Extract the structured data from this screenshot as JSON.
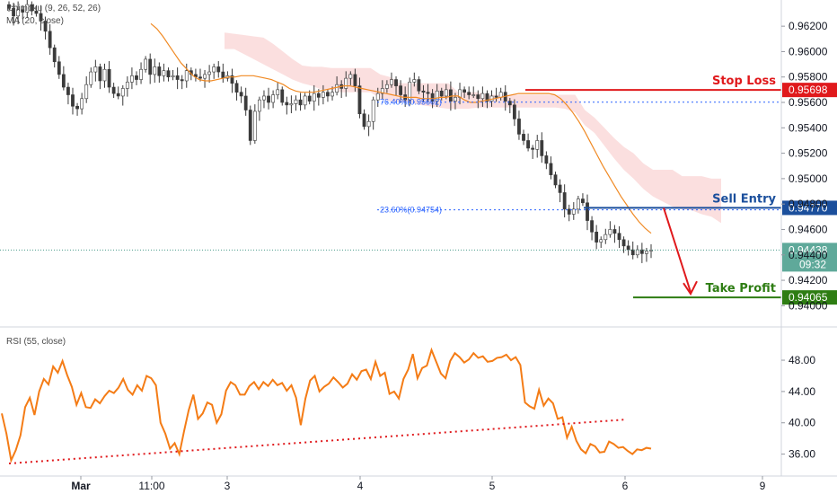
{
  "chart_data": [
    {
      "type": "candlestick",
      "legend": [
        "Ichimoku (9, 26, 52, 26)",
        "MA (20, close)"
      ],
      "y_ticks": [
        "0.96200",
        "0.96000",
        "0.95800",
        "0.95600",
        "0.95400",
        "0.95200",
        "0.95000",
        "0.94800",
        "0.94600",
        "0.94400",
        "0.94200",
        "0.94000"
      ],
      "ylim": [
        0.9396,
        0.963
      ],
      "x_ticks": [
        "Mar",
        "11:00",
        "3",
        "4",
        "5",
        "6",
        "9"
      ],
      "closes": [
        0.9634,
        0.9628,
        0.9633,
        0.9631,
        0.9637,
        0.9632,
        0.963,
        0.9624,
        0.9616,
        0.9603,
        0.9592,
        0.9582,
        0.9572,
        0.9566,
        0.9557,
        0.9555,
        0.9563,
        0.9574,
        0.9584,
        0.9588,
        0.9577,
        0.9586,
        0.9572,
        0.9567,
        0.9565,
        0.9571,
        0.9576,
        0.9581,
        0.9578,
        0.9586,
        0.9594,
        0.9582,
        0.9588,
        0.9581,
        0.9585,
        0.958,
        0.9581,
        0.9578,
        0.9577,
        0.9585,
        0.9582,
        0.958,
        0.9579,
        0.9582,
        0.9584,
        0.9588,
        0.9584,
        0.9579,
        0.9581,
        0.9575,
        0.9568,
        0.9565,
        0.9554,
        0.953,
        0.9553,
        0.9562,
        0.9565,
        0.956,
        0.9566,
        0.957,
        0.956,
        0.9558,
        0.9559,
        0.9562,
        0.9558,
        0.9565,
        0.9561,
        0.9567,
        0.9564,
        0.9568,
        0.9565,
        0.9568,
        0.9574,
        0.9571,
        0.9579,
        0.9582,
        0.9573,
        0.9551,
        0.9541,
        0.9545,
        0.9562,
        0.9567,
        0.9571,
        0.9574,
        0.9578,
        0.9573,
        0.9566,
        0.9562,
        0.9576,
        0.9578,
        0.9569,
        0.9568,
        0.9567,
        0.9561,
        0.9569,
        0.9565,
        0.957,
        0.9561,
        0.9564,
        0.957,
        0.9568,
        0.9566,
        0.9566,
        0.9563,
        0.9567,
        0.9561,
        0.9565,
        0.9564,
        0.9568,
        0.9561,
        0.9558,
        0.9547,
        0.9535,
        0.953,
        0.9524,
        0.9523,
        0.953,
        0.9518,
        0.9512,
        0.9503,
        0.9495,
        0.9489,
        0.9476,
        0.9472,
        0.9476,
        0.9484,
        0.9481,
        0.9467,
        0.9458,
        0.945,
        0.9452,
        0.9456,
        0.946,
        0.9457,
        0.9452,
        0.9447,
        0.9444,
        0.944,
        0.9444,
        0.9441,
        0.9443,
        0.94438
      ],
      "ma_20_close": [
        0.9622,
        0.9618,
        0.9612,
        0.9605,
        0.9598,
        0.9591,
        0.9586,
        0.9581,
        0.9578,
        0.9577,
        0.9577,
        0.9578,
        0.9579,
        0.958,
        0.958,
        0.9581,
        0.9581,
        0.9581,
        0.958,
        0.9579,
        0.9578,
        0.9576,
        0.9574,
        0.9571,
        0.9569,
        0.9568,
        0.9568,
        0.9568,
        0.9569,
        0.957,
        0.9571,
        0.9572,
        0.9573,
        0.9573,
        0.9572,
        0.9571,
        0.957,
        0.9569,
        0.9568,
        0.9567,
        0.9566,
        0.9565,
        0.9564,
        0.9564,
        0.9564,
        0.9563,
        0.9563,
        0.9563,
        0.9564,
        0.9564,
        0.9565,
        0.9565,
        0.9562,
        0.956,
        0.956,
        0.9561,
        0.9562,
        0.9563,
        0.9564,
        0.9565,
        0.9566,
        0.9567,
        0.9567,
        0.9567,
        0.9567,
        0.9567,
        0.9567,
        0.9566,
        0.9563,
        0.9558,
        0.9552,
        0.9545,
        0.9537,
        0.9528,
        0.9519,
        0.951,
        0.9502,
        0.9494,
        0.9486,
        0.9479,
        0.9472,
        0.9466,
        0.9461,
        0.9457
      ],
      "ma_start_index": 0,
      "ichimoku_cloud_top": [
        0.9615,
        0.9614,
        0.9613,
        0.9612,
        0.9611,
        0.9606,
        0.96,
        0.9594,
        0.9589,
        0.9588,
        0.9588,
        0.9587,
        0.9587,
        0.9587,
        0.9587,
        0.9587,
        0.9582,
        0.958,
        0.9575,
        0.9575,
        0.9575,
        0.9575,
        0.9575,
        0.9575,
        0.9568,
        0.9568,
        0.9568,
        0.9566,
        0.9566,
        0.9566,
        0.9566,
        0.9566,
        0.9566,
        0.9566,
        0.9566,
        0.9566,
        0.9566,
        0.9554,
        0.9548,
        0.954,
        0.9532,
        0.9525,
        0.952,
        0.9512,
        0.9507,
        0.9507,
        0.9507,
        0.9502,
        0.9502,
        0.9502,
        0.95,
        0.95
      ],
      "ichimoku_cloud_bottom": [
        0.9602,
        0.9602,
        0.9598,
        0.9594,
        0.959,
        0.9586,
        0.9582,
        0.9578,
        0.9575,
        0.9573,
        0.957,
        0.957,
        0.9568,
        0.9568,
        0.9568,
        0.9568,
        0.9563,
        0.9561,
        0.956,
        0.956,
        0.9558,
        0.9557,
        0.9556,
        0.9555,
        0.9555,
        0.9555,
        0.9556,
        0.9556,
        0.9556,
        0.9556,
        0.9556,
        0.9556,
        0.9556,
        0.9556,
        0.9556,
        0.9555,
        0.9552,
        0.9542,
        0.9536,
        0.9526,
        0.9516,
        0.9507,
        0.95,
        0.9492,
        0.9486,
        0.9482,
        0.9478,
        0.9476,
        0.9475,
        0.9472,
        0.947,
        0.9465
      ],
      "current_price": "0.94438",
      "countdown": "09:32",
      "fib_levels": [
        {
          "label": "76.40%(0.95602)",
          "price": 0.95602
        },
        {
          "label": "23.60%(0.94754)",
          "price": 0.94754
        }
      ],
      "levels": [
        {
          "name": "Stop Loss",
          "price": 0.95698,
          "price_label": "0.95698",
          "color": "#e0191c"
        },
        {
          "name": "Sell Entry",
          "price": 0.9477,
          "price_label": "0.94770",
          "color": "#1b4f9c"
        },
        {
          "name": "Take Profit",
          "price": 0.94065,
          "price_label": "0.94065",
          "color": "#2e7d13"
        }
      ]
    },
    {
      "type": "line",
      "legend": [
        "RSI (55, close)"
      ],
      "y_ticks": [
        "48.00",
        "44.00",
        "40.00",
        "36.00"
      ],
      "ylim": [
        34.0,
        50.3
      ],
      "values": [
        41.2,
        38.6,
        35.2,
        36.5,
        38.4,
        42.0,
        43.2,
        41.0,
        44.0,
        45.6,
        44.9,
        47.2,
        46.4,
        47.9,
        46.1,
        44.6,
        42.3,
        43.8,
        42.0,
        41.9,
        43.0,
        42.5,
        43.4,
        44.1,
        43.8,
        44.5,
        45.6,
        44.2,
        43.6,
        44.8,
        44.1,
        46.0,
        45.7,
        44.8,
        40.0,
        38.6,
        36.7,
        37.4,
        36.0,
        38.9,
        41.6,
        43.6,
        40.5,
        41.2,
        42.6,
        42.3,
        40.0,
        41.1,
        44.1,
        45.2,
        44.8,
        43.6,
        43.6,
        44.7,
        45.2,
        44.3,
        45.2,
        44.7,
        45.5,
        44.8,
        45.1,
        44.1,
        44.8,
        43.2,
        39.7,
        43.1,
        45.4,
        46.0,
        44.0,
        44.6,
        45.0,
        45.8,
        45.2,
        44.5,
        45.0,
        46.2,
        45.5,
        46.6,
        46.8,
        45.6,
        47.8,
        46.0,
        46.4,
        43.7,
        44.0,
        43.1,
        45.6,
        46.8,
        48.8,
        45.7,
        47.0,
        47.3,
        49.3,
        47.8,
        46.3,
        45.7,
        47.9,
        48.9,
        48.4,
        47.7,
        48.1,
        48.9,
        48.3,
        48.5,
        47.8,
        47.9,
        48.3,
        48.4,
        48.7,
        48.0,
        48.4,
        47.4,
        42.6,
        42.1,
        41.8,
        44.2,
        42.2,
        43.1,
        42.5,
        40.5,
        40.7,
        38.1,
        39.5,
        37.7,
        36.6,
        36.1,
        37.3,
        37.0,
        36.2,
        36.3,
        37.6,
        37.3,
        36.8,
        36.9,
        36.4,
        36.0,
        36.6,
        36.5,
        36.8,
        36.7
      ],
      "trendlines": [
        {
          "from": 34.8,
          "to": 40.4,
          "color": "#e0191c"
        }
      ]
    }
  ]
}
